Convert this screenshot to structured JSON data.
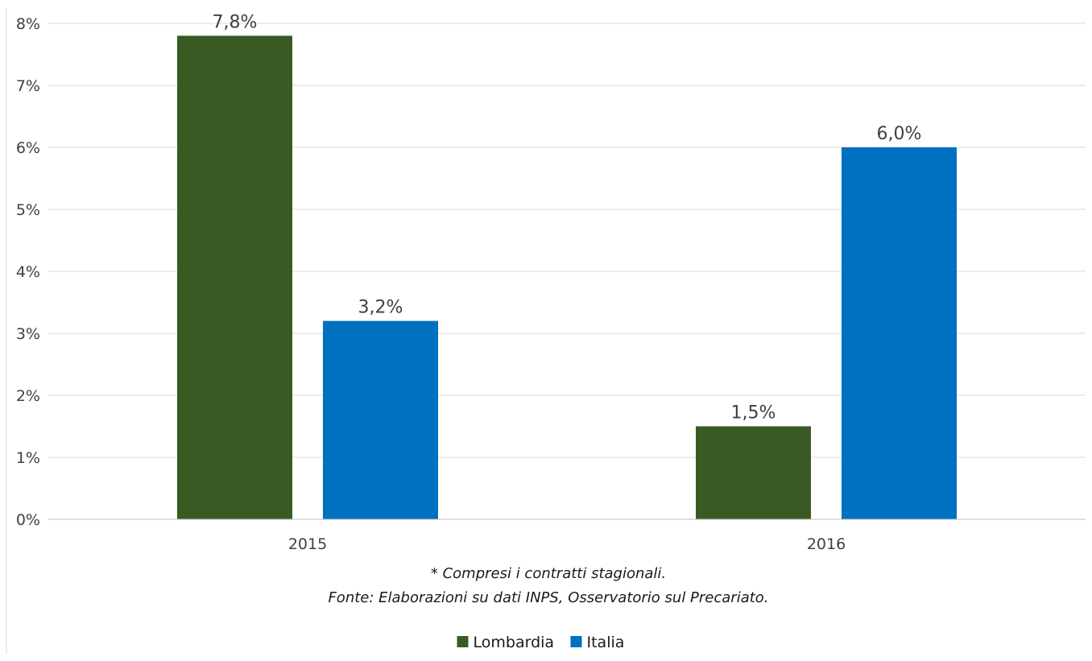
{
  "chart_data": {
    "type": "bar",
    "categories": [
      "2015",
      "2016"
    ],
    "series": [
      {
        "name": "Lombardia",
        "values": [
          7.8,
          1.5
        ],
        "labels": [
          "7,8%",
          "1,5%"
        ],
        "color": "#3a5a24"
      },
      {
        "name": "Italia",
        "values": [
          3.2,
          6.0
        ],
        "labels": [
          "3,2%",
          "6,0%"
        ],
        "color": "#0070c0"
      }
    ],
    "ylim": [
      0,
      8
    ],
    "yticks": [
      0,
      1,
      2,
      3,
      4,
      5,
      6,
      7,
      8
    ],
    "ytick_labels": [
      "0%",
      "1%",
      "2%",
      "3%",
      "4%",
      "5%",
      "6%",
      "7%",
      "8%"
    ],
    "grid": true,
    "legend": "bottom",
    "notes": [
      "* Compresi i contratti stagionali.",
      "Fonte: Elaborazioni su dati INPS, Osservatorio sul Precariato."
    ],
    "gridline_color": "#d9d9d9",
    "axis_color": "#bfbfbf"
  }
}
